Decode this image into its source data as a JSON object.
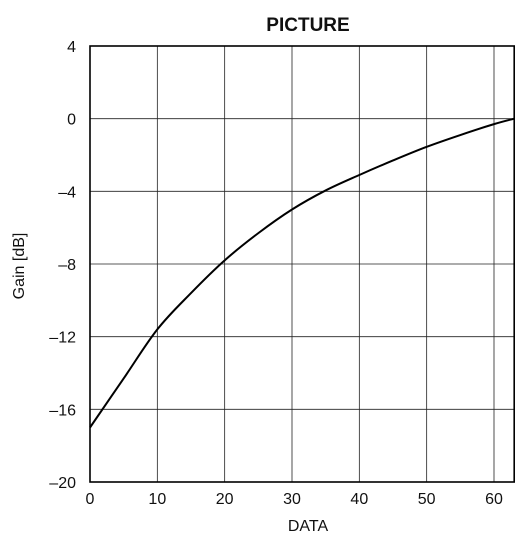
{
  "chart_data": {
    "type": "line",
    "title": "PICTURE",
    "xlabel": "DATA",
    "ylabel": "Gain [dB]",
    "xlim": [
      0,
      63
    ],
    "ylim": [
      -20,
      4
    ],
    "x_ticks": [
      0,
      10,
      20,
      30,
      40,
      50,
      60
    ],
    "y_ticks": [
      4,
      0,
      -4,
      -8,
      -12,
      -16,
      -20
    ],
    "y_tick_labels": [
      "4",
      "0",
      "–4",
      "–8",
      "–12",
      "–16",
      "–20"
    ],
    "grid": true,
    "series": [
      {
        "x": [
          0,
          5,
          10,
          15,
          20,
          25,
          30,
          35,
          40,
          45,
          50,
          55,
          60,
          63
        ],
        "y": [
          -17.0,
          -14.3,
          -11.6,
          -9.6,
          -7.8,
          -6.3,
          -5.0,
          -3.95,
          -3.1,
          -2.3,
          -1.55,
          -0.9,
          -0.3,
          0.0
        ]
      }
    ]
  }
}
